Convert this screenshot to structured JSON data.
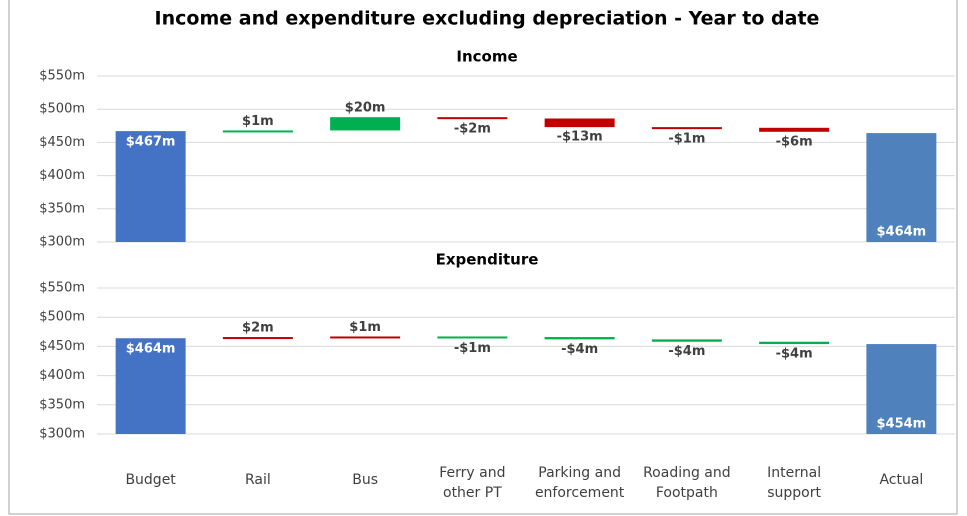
{
  "title": "Income and expenditure excluding depreciation - Year to date",
  "categories": [
    "Budget",
    "Rail",
    "Bus",
    "Ferry and other PT",
    "Parking and enforcement",
    "Roading and Footpath",
    "Internal support",
    "Actual"
  ],
  "chart_data": [
    {
      "type": "waterfall",
      "title": "Income",
      "measures": [
        "total",
        "relative",
        "relative",
        "relative",
        "relative",
        "relative",
        "relative",
        "total"
      ],
      "values": [
        467,
        1,
        20,
        -2,
        -13,
        -1,
        -6,
        464
      ],
      "value_labels": [
        "$467m",
        "$1m",
        "$20m",
        "-$2m",
        "-$13m",
        "-$1m",
        "-$6m",
        "$464m"
      ],
      "colors": [
        "#4472c4",
        "#00b050",
        "#00b050",
        "#c00000",
        "#c00000",
        "#c00000",
        "#c00000",
        "#4f81bd"
      ],
      "ylim": [
        300,
        550
      ],
      "yticks": [
        {
          "value": 300,
          "label": "$300m"
        },
        {
          "value": 350,
          "label": "$350m"
        },
        {
          "value": 400,
          "label": "$400m"
        },
        {
          "value": 450,
          "label": "$450m"
        },
        {
          "value": 500,
          "label": "$500m"
        },
        {
          "value": 550,
          "label": "$550m"
        }
      ],
      "grid": true
    },
    {
      "type": "waterfall",
      "title": "Expenditure",
      "measures": [
        "total",
        "relative",
        "relative",
        "relative",
        "relative",
        "relative",
        "relative",
        "total"
      ],
      "values": [
        464,
        2,
        1,
        -1,
        -4,
        -4,
        -4,
        454
      ],
      "value_labels": [
        "$464m",
        "$2m",
        "$1m",
        "-$1m",
        "-$4m",
        "-$4m",
        "-$4m",
        "$454m"
      ],
      "colors": [
        "#4472c4",
        "#c00000",
        "#c00000",
        "#00b050",
        "#00b050",
        "#00b050",
        "#00b050",
        "#4f81bd"
      ],
      "ylim": [
        300,
        550
      ],
      "yticks": [
        {
          "value": 300,
          "label": "$300m"
        },
        {
          "value": 350,
          "label": "$350m"
        },
        {
          "value": 400,
          "label": "$400m"
        },
        {
          "value": 450,
          "label": "$450m"
        },
        {
          "value": 500,
          "label": "$500m"
        },
        {
          "value": 550,
          "label": "$550m"
        }
      ],
      "grid": true
    }
  ]
}
